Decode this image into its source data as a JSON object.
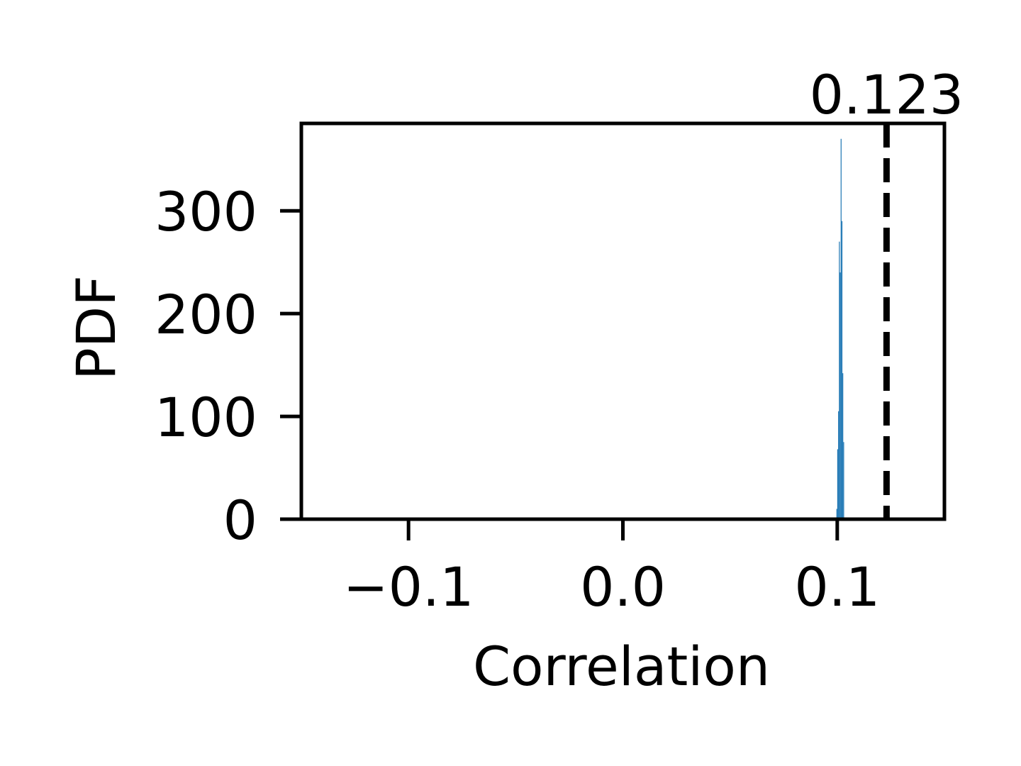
{
  "chart_data": {
    "type": "bar",
    "title": "",
    "xlabel": "Correlation",
    "ylabel": "PDF",
    "xlim": [
      -0.15,
      0.15
    ],
    "ylim": [
      0,
      385
    ],
    "x_ticks": [
      -0.1,
      0.0,
      0.1
    ],
    "x_tick_labels": [
      "−0.1",
      "0.0",
      "0.1"
    ],
    "y_ticks": [
      0,
      100,
      200,
      300
    ],
    "y_tick_labels": [
      "0",
      "100",
      "200",
      "300"
    ],
    "grid": false,
    "legend": "none",
    "bar_color": "#1f77b4",
    "histogram": {
      "bin_width": 0.0004,
      "bins": [
        {
          "x": 0.0998,
          "value": 10
        },
        {
          "x": 0.1002,
          "value": 68
        },
        {
          "x": 0.1006,
          "value": 105
        },
        {
          "x": 0.101,
          "value": 270
        },
        {
          "x": 0.1014,
          "value": 240
        },
        {
          "x": 0.1018,
          "value": 370
        },
        {
          "x": 0.1022,
          "value": 290
        },
        {
          "x": 0.1026,
          "value": 142
        },
        {
          "x": 0.103,
          "value": 75
        }
      ]
    },
    "reference_line": {
      "x": 0.123,
      "label": "0.123",
      "style": "dashed",
      "color": "#000000"
    }
  }
}
